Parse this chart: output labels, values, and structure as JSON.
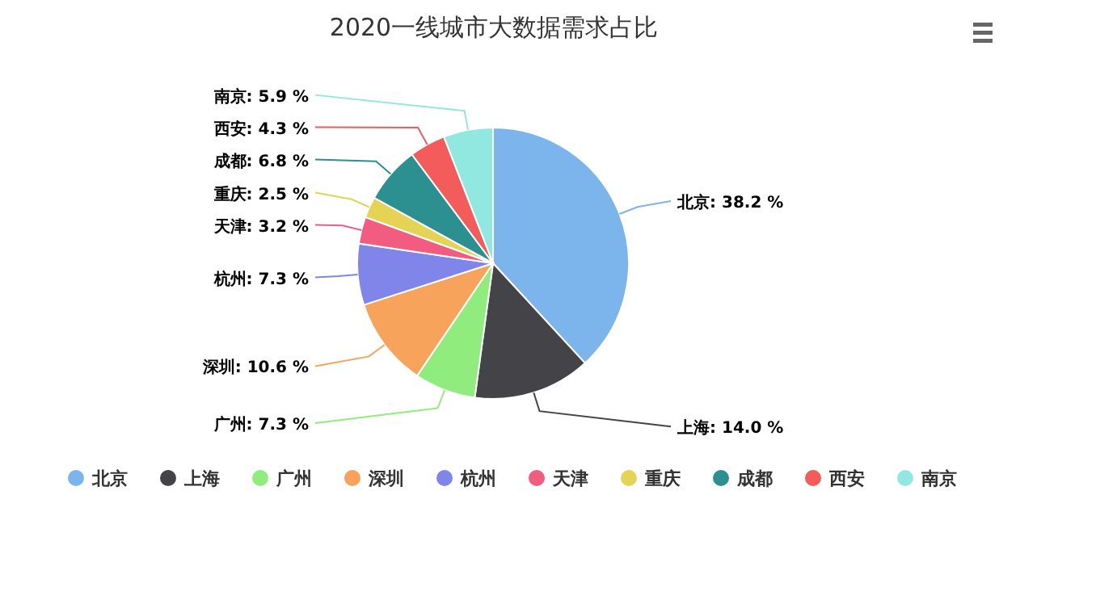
{
  "chart_data": {
    "type": "pie",
    "title": "2020一线城市大数据需求占比",
    "categories": [
      "北京",
      "上海",
      "广州",
      "深圳",
      "杭州",
      "天津",
      "重庆",
      "成都",
      "西安",
      "南京"
    ],
    "values": [
      38.2,
      14.0,
      7.3,
      10.6,
      7.3,
      3.2,
      2.5,
      6.8,
      4.3,
      5.9
    ],
    "value_labels": [
      "北京: 38.2 %",
      "上海: 14.0 %",
      "广州: 7.3 %",
      "深圳: 10.6 %",
      "杭州: 7.3 %",
      "天津: 3.2 %",
      "重庆: 2.5 %",
      "成都: 6.8 %",
      "西安: 4.3 %",
      "南京: 5.9 %"
    ],
    "colors": [
      "#7cb5ec",
      "#434348",
      "#90ed7d",
      "#f7a35c",
      "#8085e9",
      "#f15c80",
      "#e4d354",
      "#2b908f",
      "#f45b5b",
      "#91e8e1"
    ],
    "legend": "bottom"
  }
}
